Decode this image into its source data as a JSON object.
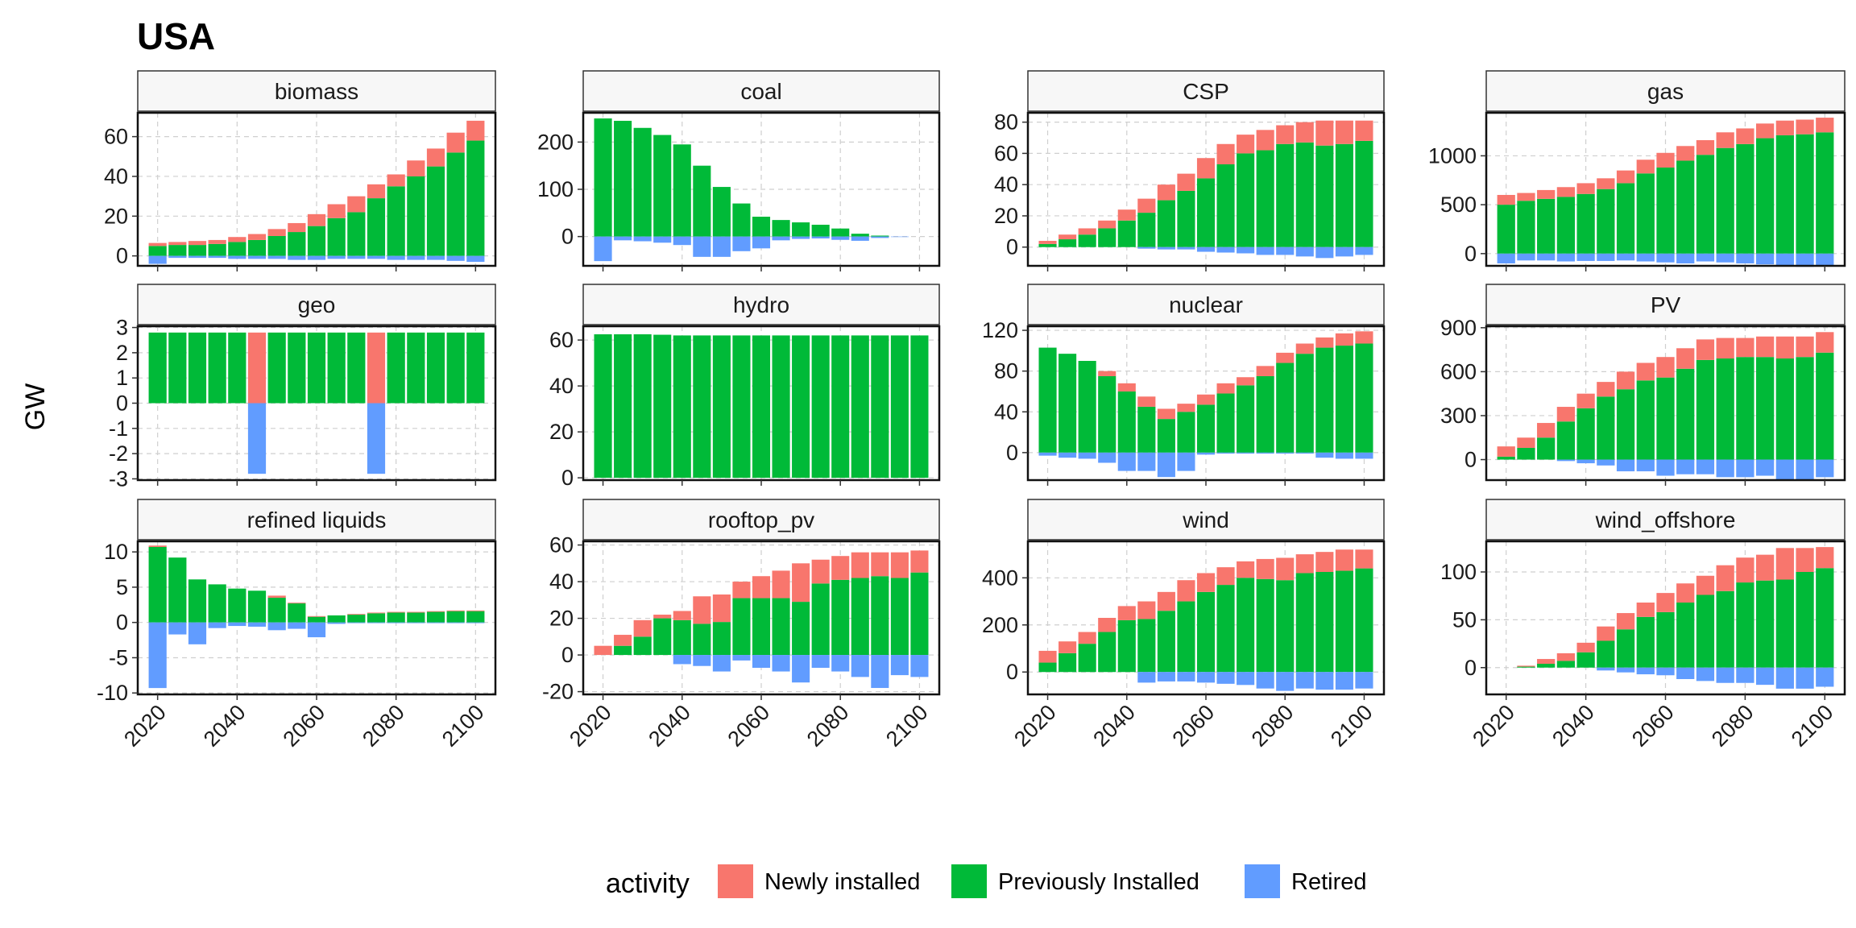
{
  "chart_data": {
    "type": "bar",
    "title": "USA",
    "ylabel": "GW",
    "xlabel": "",
    "x_ticks": [
      "2020",
      "2040",
      "2060",
      "2080",
      "2100"
    ],
    "years": [
      2020,
      2025,
      2030,
      2035,
      2040,
      2045,
      2050,
      2055,
      2060,
      2065,
      2070,
      2075,
      2080,
      2085,
      2090,
      2095,
      2100
    ],
    "xlim": [
      2015,
      2105
    ],
    "legend": {
      "title": "activity",
      "position": "bottom",
      "items": [
        {
          "name": "Newly installed",
          "color": "#F8766D"
        },
        {
          "name": "Previously Installed",
          "color": "#00BA38"
        },
        {
          "name": "Retired",
          "color": "#619CFF"
        }
      ]
    },
    "facets": [
      {
        "name": "biomass",
        "ylim": [
          -5,
          72
        ],
        "yticks": [
          "0",
          "20",
          "40",
          "60"
        ],
        "ytick_values": [
          0,
          20,
          40,
          60
        ],
        "series": {
          "Previously Installed": [
            5,
            5.5,
            5.5,
            6,
            7,
            8,
            10,
            12,
            15,
            19,
            22,
            29,
            35,
            40,
            45,
            52,
            58
          ],
          "Newly installed": [
            1.5,
            1.5,
            2,
            2,
            2.5,
            3,
            3.5,
            4.5,
            6,
            7,
            8,
            7,
            6,
            8,
            9,
            10,
            10
          ],
          "Retired": [
            -4,
            -1,
            -1,
            -1,
            -1.5,
            -1.5,
            -1.5,
            -2,
            -2,
            -1.5,
            -1.5,
            -1.5,
            -2,
            -2,
            -2,
            -2.5,
            -3
          ]
        }
      },
      {
        "name": "coal",
        "ylim": [
          -62,
          262
        ],
        "yticks": [
          "0",
          "100",
          "200"
        ],
        "ytick_values": [
          0,
          100,
          200
        ],
        "series": {
          "Previously Installed": [
            250,
            245,
            230,
            215,
            195,
            150,
            105,
            70,
            42,
            35,
            30,
            25,
            17,
            6,
            2,
            0,
            0
          ],
          "Newly installed": [
            0,
            0,
            0,
            0,
            0,
            0,
            0,
            0,
            0,
            0,
            0,
            0,
            0,
            0,
            0,
            0,
            0
          ],
          "Retired": [
            -52,
            -8,
            -10,
            -13,
            -18,
            -43,
            -43,
            -31,
            -25,
            -8,
            -5,
            -4,
            -7,
            -9,
            -3,
            -1,
            0
          ]
        }
      },
      {
        "name": "CSP",
        "ylim": [
          -12,
          86
        ],
        "yticks": [
          "0",
          "20",
          "40",
          "60",
          "80"
        ],
        "ytick_values": [
          0,
          20,
          40,
          60,
          80
        ],
        "series": {
          "Previously Installed": [
            2,
            5,
            8,
            12,
            17,
            22,
            30,
            36,
            44,
            53,
            60,
            62,
            66,
            67,
            65,
            66,
            68
          ],
          "Newly installed": [
            2,
            3,
            4,
            5,
            7,
            9,
            10,
            11,
            13,
            13,
            12,
            13,
            12,
            13,
            16,
            15,
            13
          ],
          "Retired": [
            0,
            0,
            0,
            0,
            0,
            -1,
            -1.5,
            -1.5,
            -3,
            -3.5,
            -4,
            -5,
            -5,
            -6,
            -7,
            -6,
            -5
          ]
        }
      },
      {
        "name": "gas",
        "ylim": [
          -125,
          1440
        ],
        "yticks": [
          "0",
          "500",
          "1000"
        ],
        "ytick_values": [
          0,
          500,
          1000
        ],
        "series": {
          "Previously Installed": [
            500,
            540,
            560,
            580,
            610,
            660,
            720,
            820,
            880,
            950,
            1010,
            1080,
            1120,
            1180,
            1210,
            1220,
            1240
          ],
          "Newly installed": [
            100,
            80,
            90,
            100,
            110,
            110,
            130,
            140,
            150,
            150,
            150,
            160,
            160,
            150,
            150,
            150,
            150
          ],
          "Retired": [
            -100,
            -70,
            -70,
            -80,
            -75,
            -75,
            -70,
            -80,
            -90,
            -100,
            -80,
            -90,
            -100,
            -110,
            -130,
            -135,
            -120
          ]
        }
      },
      {
        "name": "geo",
        "ylim": [
          -3.05,
          3.05
        ],
        "yticks": [
          "3",
          "2",
          "1",
          "0",
          "-1",
          "-2",
          "-3"
        ],
        "ytick_values": [
          3,
          2,
          1,
          0,
          -1,
          -2,
          -3
        ],
        "series": {
          "Previously Installed": [
            2.8,
            2.8,
            2.8,
            2.8,
            2.8,
            0,
            2.8,
            2.8,
            2.8,
            2.8,
            2.8,
            0,
            2.8,
            2.8,
            2.8,
            2.8,
            2.8
          ],
          "Newly installed": [
            0,
            0,
            0,
            0,
            0,
            2.8,
            0,
            0,
            0,
            0,
            0,
            2.8,
            0,
            0,
            0,
            0,
            0
          ],
          "Retired": [
            0,
            0,
            0,
            0,
            0,
            -2.8,
            0,
            0,
            0,
            0,
            0,
            -2.8,
            0,
            0,
            0,
            0,
            0
          ]
        }
      },
      {
        "name": "hydro",
        "ylim": [
          -1,
          66
        ],
        "yticks": [
          "0",
          "20",
          "40",
          "60"
        ],
        "ytick_values": [
          0,
          20,
          40,
          60
        ],
        "series": {
          "Previously Installed": [
            62.5,
            62.5,
            62.5,
            62.3,
            62,
            62,
            62,
            62,
            62,
            62,
            62,
            62,
            62,
            62,
            62,
            62,
            62
          ],
          "Newly installed": [
            0,
            0,
            0,
            0,
            0,
            0,
            0,
            0,
            0,
            0,
            0,
            0,
            0,
            0,
            0,
            0,
            0
          ],
          "Retired": [
            0,
            0,
            0,
            0,
            0,
            0,
            0,
            0,
            0,
            0,
            0,
            0,
            0,
            0,
            0,
            0,
            0
          ]
        }
      },
      {
        "name": "nuclear",
        "ylim": [
          -27,
          124
        ],
        "yticks": [
          "0",
          "40",
          "80",
          "120"
        ],
        "ytick_values": [
          0,
          40,
          80,
          120
        ],
        "series": {
          "Previously Installed": [
            103,
            97,
            90,
            75,
            60,
            45,
            33,
            40,
            47,
            58,
            66,
            75,
            88,
            97,
            103,
            105,
            107
          ],
          "Newly installed": [
            0,
            0,
            0,
            5,
            8,
            10,
            10,
            8,
            10,
            10,
            8,
            10,
            10,
            10,
            10,
            12,
            12
          ],
          "Retired": [
            -3,
            -5,
            -6,
            -10,
            -18,
            -18,
            -24,
            -18,
            -2,
            -1,
            -1,
            -1,
            -1,
            -1,
            -5,
            -6,
            -6
          ]
        }
      },
      {
        "name": "PV",
        "ylim": [
          -140,
          910
        ],
        "yticks": [
          "0",
          "300",
          "600",
          "900"
        ],
        "ytick_values": [
          0,
          300,
          600,
          900
        ],
        "series": {
          "Previously Installed": [
            20,
            80,
            150,
            260,
            350,
            430,
            480,
            540,
            560,
            620,
            680,
            690,
            700,
            700,
            690,
            700,
            730
          ],
          "Newly installed": [
            70,
            70,
            100,
            100,
            100,
            100,
            120,
            120,
            140,
            140,
            140,
            140,
            130,
            140,
            150,
            140,
            140
          ],
          "Retired": [
            0,
            0,
            0,
            -10,
            -25,
            -40,
            -80,
            -80,
            -110,
            -100,
            -100,
            -120,
            -120,
            -110,
            -140,
            -140,
            -120
          ]
        }
      },
      {
        "name": "refined liquids",
        "ylim": [
          -10.2,
          11.5
        ],
        "yticks": [
          "10",
          "5",
          "0",
          "-5",
          "-10"
        ],
        "ytick_values": [
          10,
          5,
          0,
          -5,
          -10
        ],
        "series": {
          "Previously Installed": [
            10.7,
            9.2,
            6.1,
            5.4,
            4.8,
            4.5,
            3.5,
            2.7,
            0.8,
            1.0,
            1.1,
            1.3,
            1.4,
            1.4,
            1.5,
            1.6,
            1.6
          ],
          "Newly installed": [
            0.2,
            0,
            0,
            0,
            0,
            0,
            0.3,
            0.1,
            0.1,
            0,
            0.1,
            0.1,
            0.1,
            0.1,
            0.1,
            0.1,
            0.1
          ],
          "Retired": [
            -9.3,
            -1.7,
            -3.1,
            -0.8,
            -0.5,
            -0.6,
            -1.1,
            -0.9,
            -2.1,
            -0.2,
            -0.1,
            -0.1,
            -0.1,
            -0.1,
            -0.1,
            -0.1,
            -0.1
          ]
        }
      },
      {
        "name": "rooftop_pv",
        "ylim": [
          -21.5,
          62
        ],
        "yticks": [
          "60",
          "40",
          "20",
          "0",
          "-20"
        ],
        "ytick_values": [
          60,
          40,
          20,
          0,
          -20
        ],
        "series": {
          "Previously Installed": [
            0,
            5,
            10,
            20,
            19,
            17,
            18,
            31,
            31,
            31,
            29,
            39,
            41,
            42,
            43,
            42,
            45
          ],
          "Newly installed": [
            5,
            6,
            9,
            2,
            5,
            15,
            15,
            9,
            12,
            15,
            21,
            13,
            13,
            14,
            13,
            14,
            12
          ],
          "Retired": [
            0,
            0,
            0,
            0,
            -5,
            -6,
            -9,
            -3,
            -7,
            -9,
            -15,
            -7,
            -9,
            -12,
            -18,
            -11,
            -12
          ]
        }
      },
      {
        "name": "wind",
        "ylim": [
          -95,
          555
        ],
        "yticks": [
          "0",
          "200",
          "400"
        ],
        "ytick_values": [
          0,
          200,
          400
        ],
        "series": {
          "Previously Installed": [
            40,
            80,
            120,
            170,
            220,
            225,
            260,
            300,
            340,
            370,
            400,
            395,
            390,
            420,
            425,
            430,
            440
          ],
          "Newly installed": [
            50,
            50,
            50,
            60,
            60,
            75,
            80,
            90,
            80,
            75,
            70,
            85,
            95,
            80,
            85,
            90,
            80
          ],
          "Retired": [
            0,
            0,
            0,
            0,
            0,
            -45,
            -40,
            -40,
            -45,
            -50,
            -55,
            -70,
            -80,
            -70,
            -75,
            -75,
            -70
          ]
        }
      },
      {
        "name": "wind_offshore",
        "ylim": [
          -28,
          132
        ],
        "yticks": [
          "0",
          "50",
          "100"
        ],
        "ytick_values": [
          0,
          50,
          100
        ],
        "series": {
          "Previously Installed": [
            0,
            1,
            4,
            7,
            16,
            28,
            40,
            53,
            58,
            68,
            76,
            80,
            89,
            91,
            92,
            100,
            104
          ],
          "Newly installed": [
            0,
            1,
            5,
            8,
            10,
            15,
            17,
            15,
            20,
            20,
            20,
            27,
            26,
            27,
            33,
            25,
            22
          ],
          "Retired": [
            0,
            0,
            0,
            0,
            0,
            -3,
            -5,
            -7,
            -8,
            -12,
            -14,
            -16,
            -16,
            -18,
            -22,
            -22,
            -20
          ]
        }
      }
    ]
  }
}
